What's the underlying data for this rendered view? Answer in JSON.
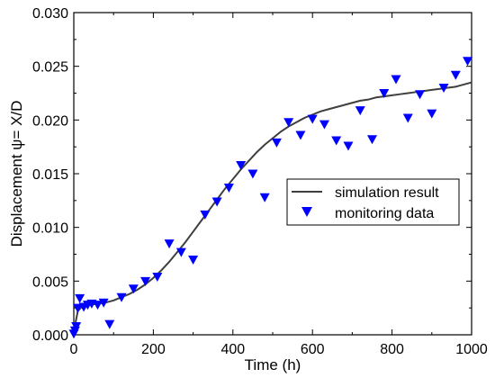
{
  "chart_data": {
    "type": "scatter",
    "xlabel": "Time (h)",
    "ylabel": "Displacement ψ= X/D",
    "xlim": [
      0,
      1000
    ],
    "ylim": [
      0,
      0.03
    ],
    "xticks": [
      0,
      200,
      400,
      600,
      800,
      1000
    ],
    "yticks": [
      0.0,
      0.005,
      0.01,
      0.015,
      0.02,
      0.025,
      0.03
    ],
    "xtick_labels": [
      "0",
      "200",
      "400",
      "600",
      "800",
      "1000"
    ],
    "ytick_labels": [
      "0.000",
      "0.005",
      "0.010",
      "0.015",
      "0.020",
      "0.025",
      "0.030"
    ],
    "grid": false,
    "legend_position": "center-right",
    "series": [
      {
        "name": "simulation result",
        "kind": "line",
        "color": "#3f3f3f",
        "x": [
          0,
          10,
          20,
          30,
          40,
          60,
          80,
          100,
          120,
          140,
          160,
          180,
          200,
          220,
          240,
          260,
          280,
          300,
          320,
          340,
          360,
          380,
          400,
          420,
          440,
          460,
          480,
          500,
          520,
          540,
          560,
          580,
          600,
          620,
          640,
          660,
          680,
          700,
          720,
          740,
          760,
          780,
          800,
          820,
          840,
          860,
          880,
          900,
          920,
          940,
          960,
          980,
          1000
        ],
        "y": [
          0.0003,
          0.0022,
          0.0026,
          0.0027,
          0.0028,
          0.0029,
          0.003,
          0.0032,
          0.0035,
          0.0038,
          0.0042,
          0.0047,
          0.0053,
          0.006,
          0.0068,
          0.0077,
          0.0086,
          0.0096,
          0.0106,
          0.0116,
          0.0126,
          0.0136,
          0.0145,
          0.0154,
          0.0162,
          0.017,
          0.0177,
          0.0183,
          0.0189,
          0.0194,
          0.0198,
          0.0202,
          0.0205,
          0.0208,
          0.021,
          0.0212,
          0.0214,
          0.0216,
          0.0218,
          0.0219,
          0.0221,
          0.0222,
          0.0223,
          0.0224,
          0.0225,
          0.0226,
          0.0227,
          0.0228,
          0.0229,
          0.023,
          0.0231,
          0.0233,
          0.0235
        ]
      },
      {
        "name": "monitoring data",
        "kind": "scatter",
        "marker": "triangle-down",
        "color": "#0000ff",
        "x": [
          0,
          3,
          6,
          10,
          15,
          25,
          35,
          45,
          60,
          75,
          90,
          120,
          150,
          180,
          210,
          240,
          270,
          300,
          330,
          360,
          390,
          420,
          450,
          480,
          510,
          540,
          570,
          600,
          630,
          660,
          690,
          720,
          750,
          780,
          810,
          840,
          870,
          900,
          930,
          960,
          990
        ],
        "y": [
          0.0001,
          0.0004,
          0.0008,
          0.0025,
          0.0034,
          0.0026,
          0.0028,
          0.0029,
          0.0028,
          0.003,
          0.001,
          0.0035,
          0.0043,
          0.005,
          0.0054,
          0.0085,
          0.0077,
          0.007,
          0.0112,
          0.0124,
          0.0137,
          0.0158,
          0.015,
          0.0128,
          0.0179,
          0.0198,
          0.0186,
          0.0201,
          0.0196,
          0.0181,
          0.0176,
          0.0209,
          0.0182,
          0.0225,
          0.0238,
          0.0202,
          0.0224,
          0.0206,
          0.023,
          0.0242,
          0.0255
        ]
      }
    ]
  }
}
